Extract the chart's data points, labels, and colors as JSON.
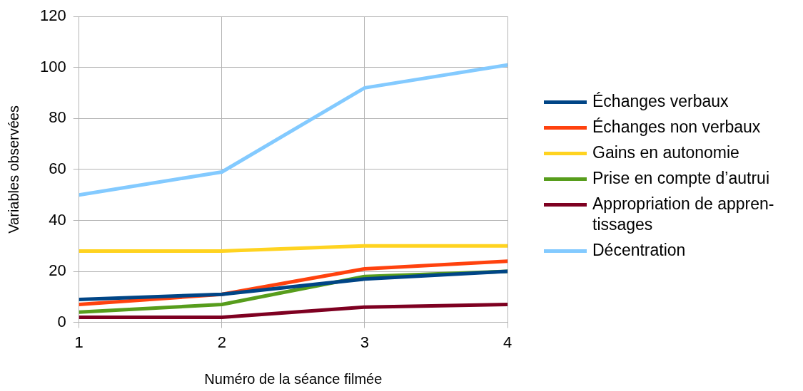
{
  "chart_data": {
    "type": "line",
    "xlabel": "Numéro de la séance filmée",
    "ylabel": "Variables observées",
    "x": [
      1,
      2,
      3,
      4
    ],
    "xlim": [
      1,
      4
    ],
    "xticks": [
      1,
      2,
      3,
      4
    ],
    "ylim": [
      0,
      120
    ],
    "yticks": [
      0,
      20,
      40,
      60,
      80,
      100,
      120
    ],
    "grid": true,
    "legend": "right",
    "marker": "none",
    "line_style": "solid",
    "series": [
      {
        "name": "Échanges verbaux",
        "color": "#004586",
        "values": [
          9,
          11,
          17,
          20
        ]
      },
      {
        "name": "Échanges non verbaux",
        "color": "#ff420e",
        "values": [
          7,
          11,
          21,
          24
        ]
      },
      {
        "name": "Gains en autonomie",
        "color": "#ffd320",
        "values": [
          28,
          28,
          30,
          30
        ]
      },
      {
        "name": "Prise en compte d’autrui",
        "color": "#579d1c",
        "values": [
          4,
          7,
          18,
          20
        ]
      },
      {
        "name": "Appropriation de appren-tissages",
        "color": "#7e0021",
        "values": [
          2,
          2,
          6,
          7
        ]
      },
      {
        "name": "Décentration",
        "color": "#83caff",
        "values": [
          50,
          59,
          92,
          101
        ]
      }
    ]
  }
}
